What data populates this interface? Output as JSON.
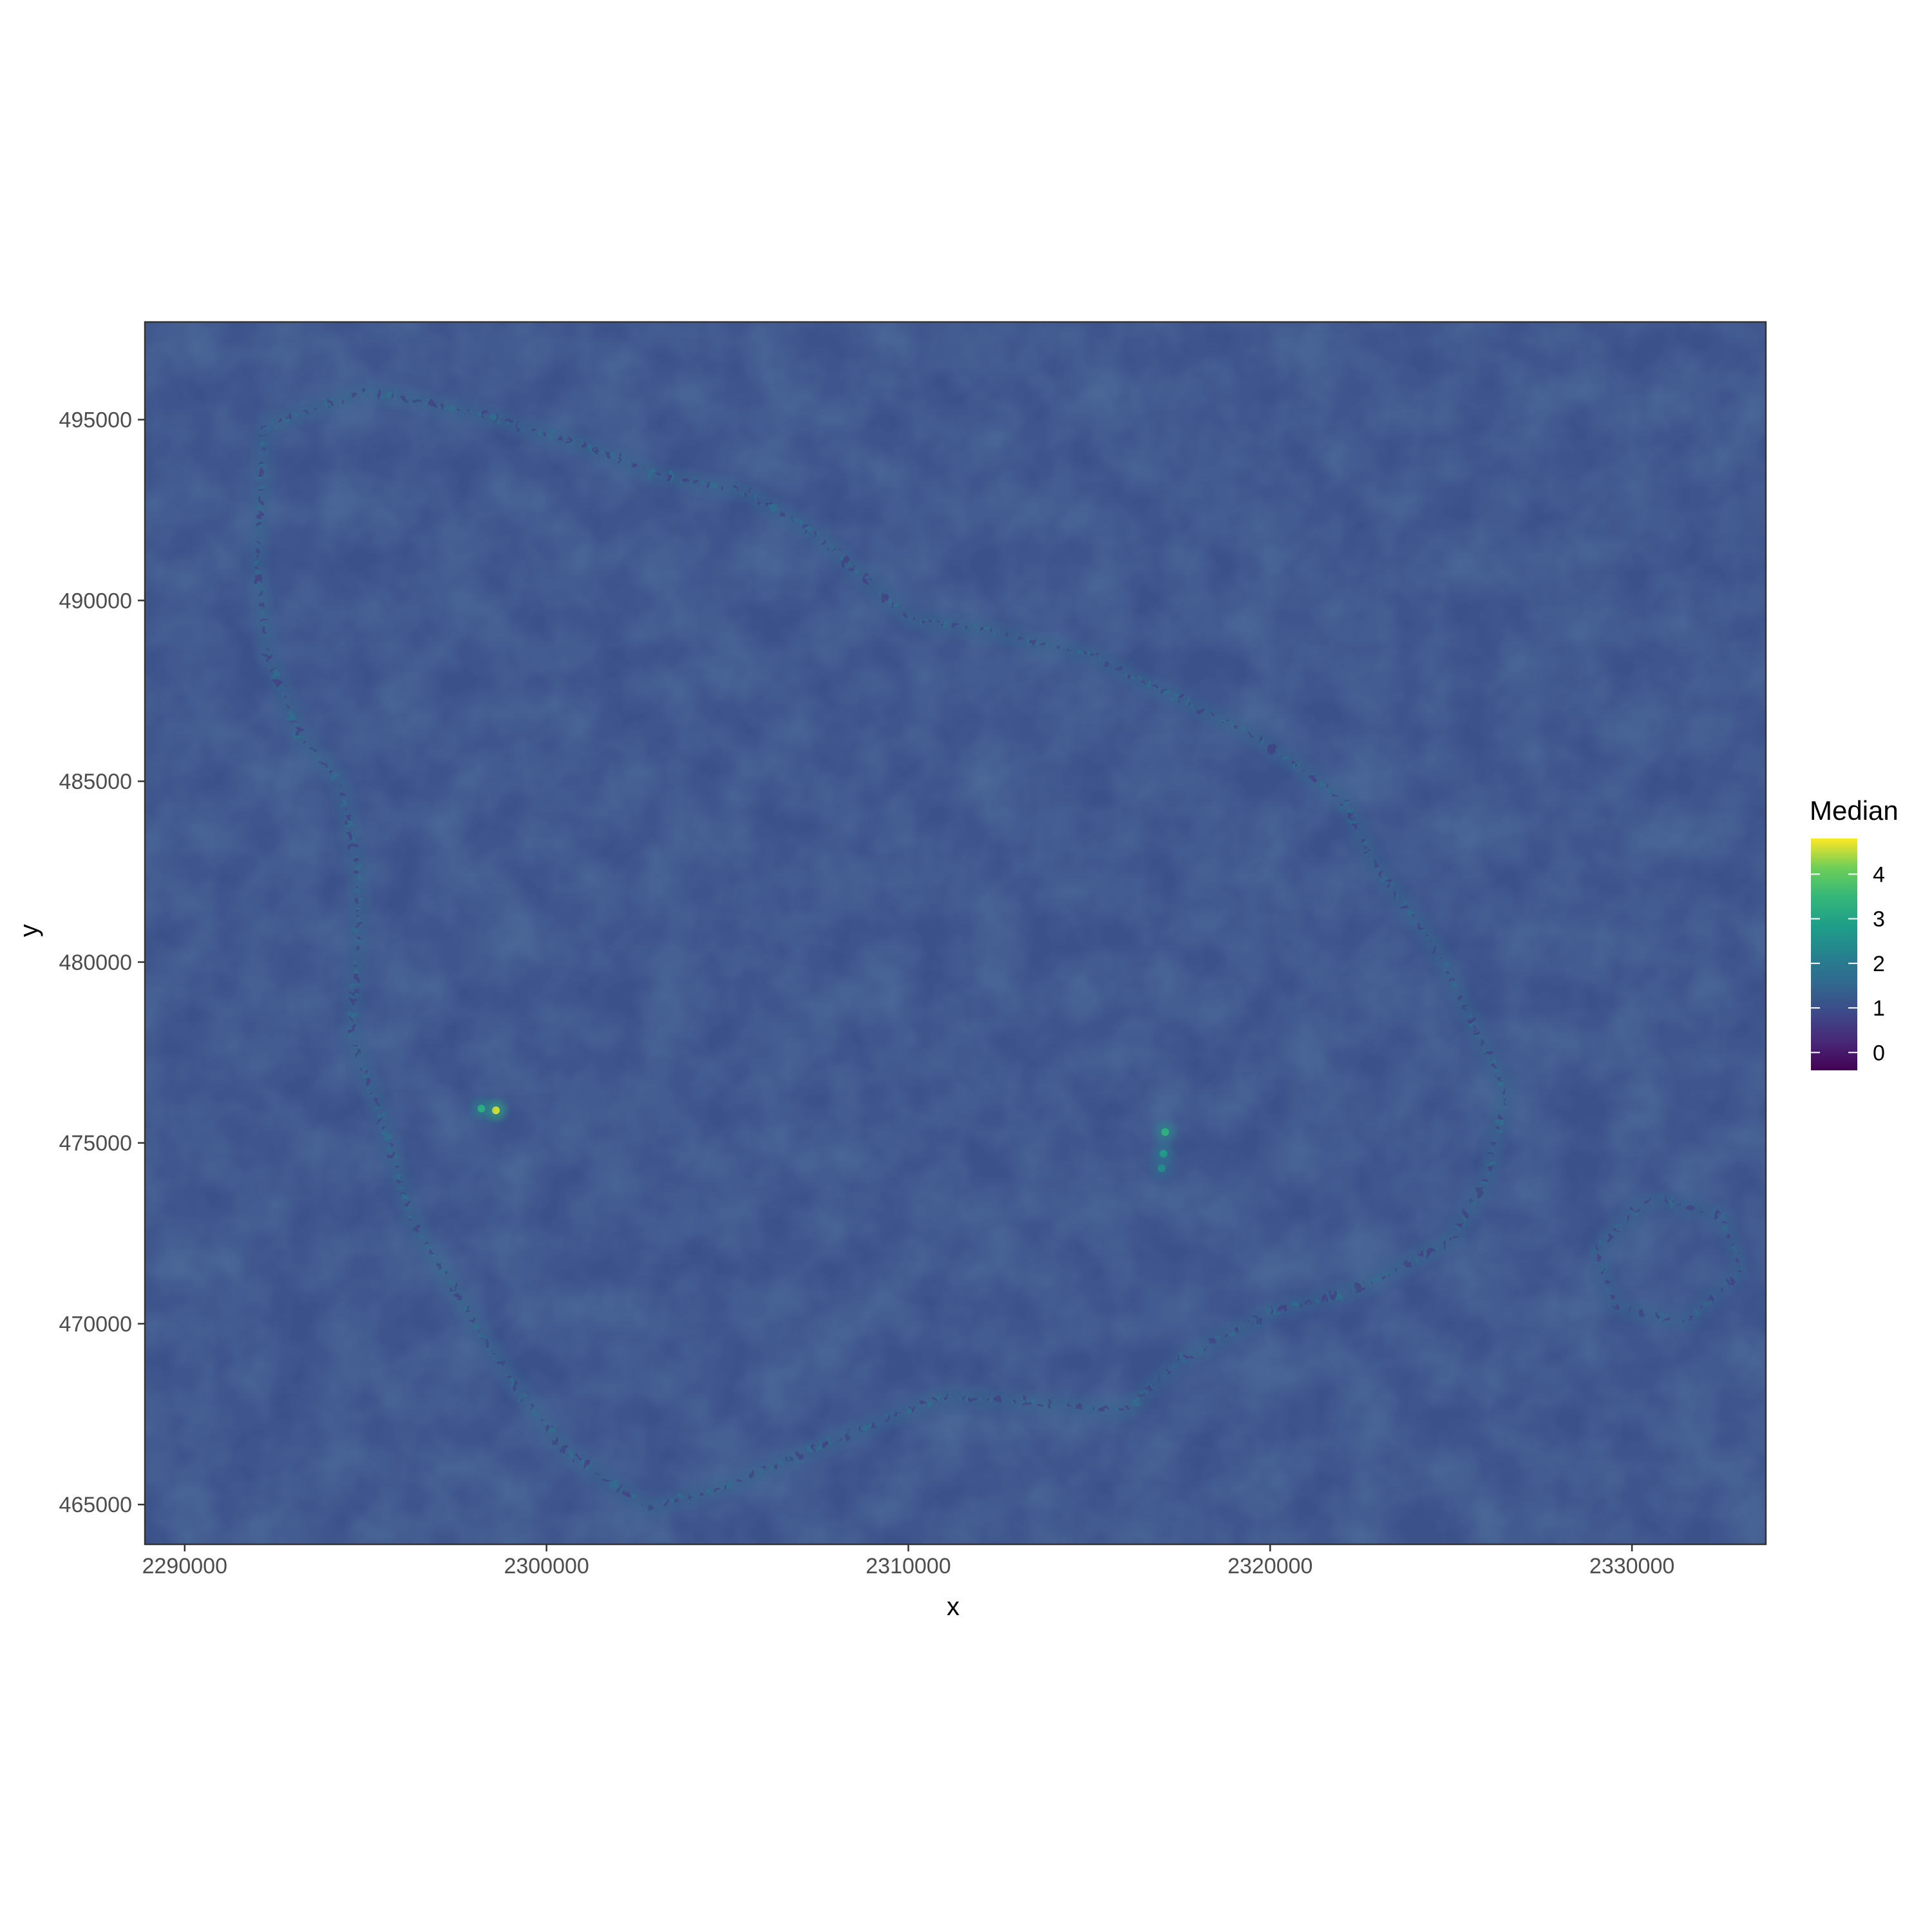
{
  "chart_data": {
    "type": "heatmap",
    "title": "",
    "xlabel": "x",
    "ylabel": "y",
    "xlim": [
      2288900,
      2333700
    ],
    "ylim": [
      463900,
      497700
    ],
    "x_ticks": [
      2290000,
      2300000,
      2310000,
      2320000,
      2330000
    ],
    "x_tick_labels": [
      "2290000",
      "2300000",
      "2310000",
      "2320000",
      "2330000"
    ],
    "y_ticks": [
      465000,
      470000,
      475000,
      480000,
      485000,
      490000,
      495000
    ],
    "y_tick_labels": [
      "465000",
      "470000",
      "475000",
      "480000",
      "485000",
      "490000",
      "495000"
    ],
    "grid": false,
    "colormap": "viridis",
    "background_value": 1.05,
    "legend": {
      "title": "Median",
      "placement": "right",
      "range": [
        -0.4,
        4.8
      ],
      "ticks": [
        0,
        1,
        2,
        3,
        4
      ],
      "tick_labels": [
        "0",
        "1",
        "2",
        "3",
        "4"
      ]
    },
    "features": [
      {
        "kind": "ring",
        "description_value": 1.5,
        "path": [
          [
            2292200,
            494800
          ],
          [
            2295000,
            495800
          ],
          [
            2298000,
            495200
          ],
          [
            2301000,
            494300
          ],
          [
            2303000,
            493500
          ],
          [
            2305500,
            493000
          ],
          [
            2307500,
            491800
          ],
          [
            2310000,
            489500
          ],
          [
            2312000,
            489200
          ],
          [
            2315000,
            488500
          ],
          [
            2317000,
            487500
          ],
          [
            2319500,
            486300
          ],
          [
            2322000,
            484500
          ],
          [
            2323000,
            482500
          ],
          [
            2324500,
            480500
          ],
          [
            2325500,
            478500
          ],
          [
            2326500,
            476500
          ],
          [
            2326000,
            474000
          ],
          [
            2325000,
            472300
          ],
          [
            2322500,
            471000
          ],
          [
            2320000,
            470300
          ],
          [
            2317500,
            469000
          ],
          [
            2316000,
            467600
          ],
          [
            2313500,
            467800
          ],
          [
            2311000,
            468000
          ],
          [
            2308000,
            466800
          ],
          [
            2305000,
            465500
          ],
          [
            2302800,
            464900
          ],
          [
            2300500,
            466500
          ],
          [
            2299000,
            468500
          ],
          [
            2297700,
            470500
          ],
          [
            2296300,
            472800
          ],
          [
            2295500,
            475500
          ],
          [
            2294600,
            478000
          ],
          [
            2294800,
            480500
          ],
          [
            2294800,
            482500
          ],
          [
            2294300,
            485000
          ],
          [
            2293200,
            486200
          ],
          [
            2292300,
            488500
          ],
          [
            2292000,
            491000
          ],
          [
            2292200,
            494800
          ]
        ]
      },
      {
        "kind": "ring",
        "description_value": 1.4,
        "path": [
          [
            2330500,
            473500
          ],
          [
            2332500,
            473000
          ],
          [
            2333000,
            471500
          ],
          [
            2331500,
            470000
          ],
          [
            2329500,
            470500
          ],
          [
            2329000,
            472000
          ],
          [
            2330500,
            473500
          ]
        ]
      },
      {
        "kind": "hotspot",
        "x": 2298600,
        "y": 475900,
        "value": 4.6
      },
      {
        "kind": "hotspot",
        "x": 2298200,
        "y": 475950,
        "value": 3.2
      },
      {
        "kind": "hotspot",
        "x": 2317100,
        "y": 475300,
        "value": 3.3
      },
      {
        "kind": "hotspot",
        "x": 2317050,
        "y": 474700,
        "value": 2.8
      },
      {
        "kind": "hotspot",
        "x": 2317000,
        "y": 474300,
        "value": 2.4
      }
    ]
  }
}
